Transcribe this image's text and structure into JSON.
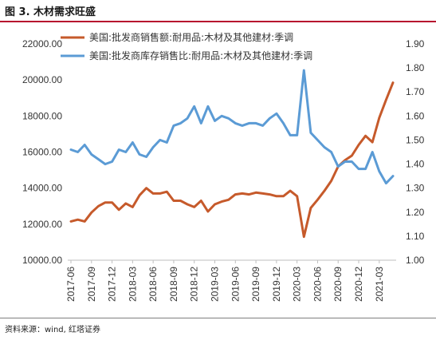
{
  "figure_title": "图 3. 木材需求旺盛",
  "source_note": "资料来源：wind, 红塔证券",
  "chart_data": {
    "type": "line",
    "title": "",
    "xlabel": "",
    "ylabel": "",
    "y_left_range": [
      10000,
      22000
    ],
    "y_left_ticks": [
      "22000.00",
      "20000.00",
      "18000.00",
      "16000.00",
      "14000.00",
      "12000.00",
      "10000.00"
    ],
    "y_right_range": [
      1.0,
      1.9
    ],
    "y_right_ticks": [
      "1.90",
      "1.80",
      "1.70",
      "1.60",
      "1.50",
      "1.40",
      "1.30",
      "1.20",
      "1.10",
      "1.00"
    ],
    "x_tick_labels": [
      "2017-06",
      "2017-09",
      "2017-12",
      "2018-03",
      "2018-06",
      "2018-09",
      "2018-12",
      "2019-03",
      "2019-06",
      "2019-09",
      "2019-12",
      "2020-03",
      "2020-06",
      "2020-09",
      "2020-12",
      "2021-03"
    ],
    "x": [
      "2017-06",
      "2017-07",
      "2017-08",
      "2017-09",
      "2017-10",
      "2017-11",
      "2017-12",
      "2018-01",
      "2018-02",
      "2018-03",
      "2018-04",
      "2018-05",
      "2018-06",
      "2018-07",
      "2018-08",
      "2018-09",
      "2018-10",
      "2018-11",
      "2018-12",
      "2019-01",
      "2019-02",
      "2019-03",
      "2019-04",
      "2019-05",
      "2019-06",
      "2019-07",
      "2019-08",
      "2019-09",
      "2019-10",
      "2019-11",
      "2019-12",
      "2020-01",
      "2020-02",
      "2020-03",
      "2020-04",
      "2020-05",
      "2020-06",
      "2020-07",
      "2020-08",
      "2020-09",
      "2020-10",
      "2020-11",
      "2020-12",
      "2021-01",
      "2021-02",
      "2021-03",
      "2021-04",
      "2021-05"
    ],
    "grid": false,
    "legend_position": "top-left",
    "series": [
      {
        "name": "美国:批发商销售额:耐用品:木材及其他建材:季调",
        "axis": "left",
        "color": "#c65a2b",
        "values": [
          12150,
          12250,
          12150,
          12650,
          13000,
          13200,
          13200,
          12800,
          13150,
          12950,
          13600,
          14000,
          13700,
          13700,
          13800,
          13300,
          13300,
          13100,
          12950,
          13300,
          12700,
          13100,
          13250,
          13350,
          13650,
          13700,
          13650,
          13750,
          13700,
          13650,
          13550,
          13550,
          13850,
          13550,
          11300,
          12900,
          13350,
          13850,
          14400,
          15200,
          15550,
          15800,
          16400,
          16900,
          16550,
          17900,
          18900,
          19850
        ]
      },
      {
        "name": "美国:批发商库存销售比:耐用品:木材及其他建材:季调",
        "axis": "right",
        "color": "#5b9bd5",
        "values": [
          1.46,
          1.45,
          1.48,
          1.44,
          1.42,
          1.4,
          1.41,
          1.46,
          1.45,
          1.49,
          1.44,
          1.43,
          1.47,
          1.5,
          1.49,
          1.56,
          1.57,
          1.59,
          1.64,
          1.57,
          1.64,
          1.58,
          1.6,
          1.59,
          1.57,
          1.56,
          1.57,
          1.57,
          1.56,
          1.59,
          1.61,
          1.57,
          1.52,
          1.52,
          1.79,
          1.53,
          1.5,
          1.47,
          1.45,
          1.39,
          1.41,
          1.41,
          1.38,
          1.38,
          1.45,
          1.37,
          1.32,
          1.35
        ]
      }
    ]
  }
}
